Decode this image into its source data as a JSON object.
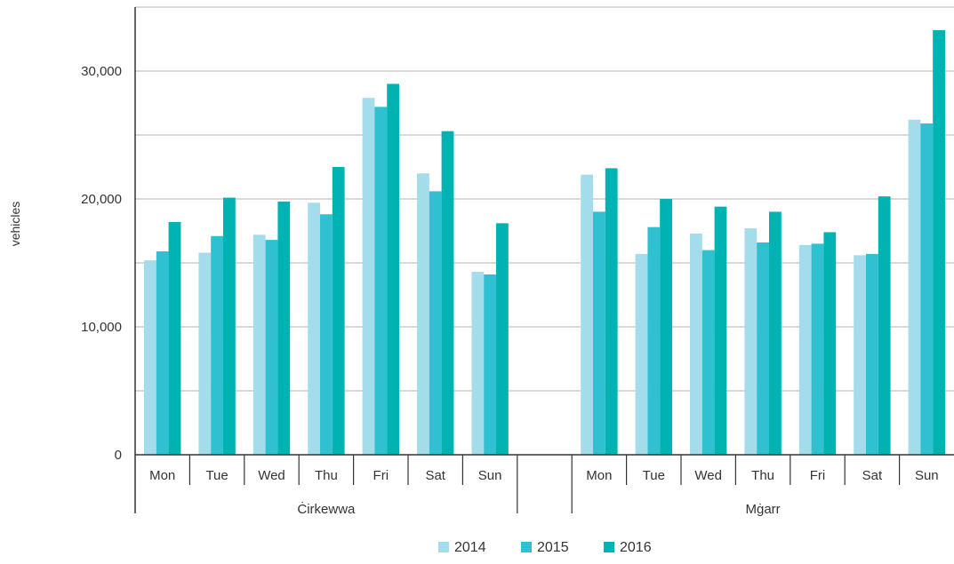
{
  "chart_data": {
    "type": "bar",
    "ylabel": "vehicles",
    "ylim": [
      0,
      35000
    ],
    "yticks": [
      0,
      10000,
      20000,
      30000
    ],
    "ytick_labels": [
      "0",
      "10,000",
      "20,000",
      "30,000"
    ],
    "grid": true,
    "legend_position": "bottom",
    "groups": [
      {
        "name": "Ċirkewwa",
        "categories": [
          "Mon",
          "Tue",
          "Wed",
          "Thu",
          "Fri",
          "Sat",
          "Sun"
        ],
        "series": [
          {
            "name": "2014",
            "values": [
              15200,
              15800,
              17200,
              19700,
              27900,
              22000,
              14300
            ]
          },
          {
            "name": "2015",
            "values": [
              15900,
              17100,
              16800,
              18800,
              27200,
              20600,
              14100
            ]
          },
          {
            "name": "2016",
            "values": [
              18200,
              20100,
              19800,
              22500,
              29000,
              25300,
              18100
            ]
          }
        ]
      },
      {
        "name": "Mġarr",
        "categories": [
          "Mon",
          "Tue",
          "Wed",
          "Thu",
          "Fri",
          "Sat",
          "Sun"
        ],
        "series": [
          {
            "name": "2014",
            "values": [
              21900,
              15700,
              17300,
              17700,
              16400,
              15600,
              26200
            ]
          },
          {
            "name": "2015",
            "values": [
              19000,
              17800,
              16000,
              16600,
              16500,
              15700,
              25900
            ]
          },
          {
            "name": "2016",
            "values": [
              22400,
              20000,
              19400,
              19000,
              17400,
              20200,
              33200
            ]
          }
        ]
      }
    ],
    "colors": [
      "#a3dcea",
      "#2fc0d1",
      "#00b3b3"
    ]
  }
}
